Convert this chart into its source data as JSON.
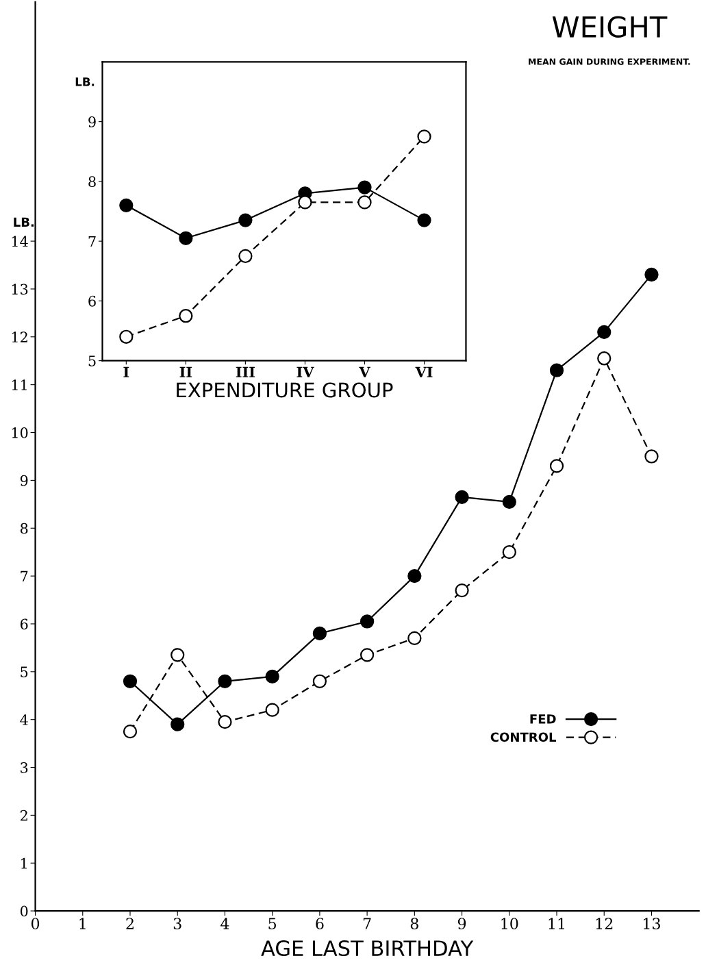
{
  "chart_data": [
    {
      "type": "line",
      "title": "WEIGHT",
      "subtitle": "MEAN GAIN DURING EXPERIMENT.",
      "xlabel": "AGE LAST BIRTHDAY",
      "ylabel": "LB.",
      "x": [
        2,
        3,
        4,
        5,
        6,
        7,
        8,
        9,
        10,
        11,
        12,
        13
      ],
      "xlim": [
        0,
        14
      ],
      "ylim": [
        0,
        19
      ],
      "xticks": [
        0,
        1,
        2,
        3,
        4,
        5,
        6,
        7,
        8,
        9,
        10,
        11,
        12,
        13
      ],
      "yticks": [
        0,
        1,
        2,
        3,
        4,
        5,
        6,
        7,
        8,
        9,
        10,
        11,
        12,
        13,
        14
      ],
      "grid": false,
      "legend": "bottom right",
      "marker": "circle",
      "series": [
        {
          "name": "FED",
          "color": "#000000",
          "line_style": "solid",
          "values": [
            4.8,
            3.9,
            4.8,
            4.9,
            5.8,
            6.05,
            7.0,
            8.65,
            8.55,
            11.3,
            12.1,
            13.3
          ]
        },
        {
          "name": "CONTROL",
          "color": "#000000",
          "line_style": "dashed",
          "values": [
            3.75,
            5.35,
            3.95,
            4.2,
            4.8,
            5.35,
            5.7,
            6.7,
            7.5,
            9.3,
            11.55,
            9.5
          ]
        }
      ]
    },
    {
      "type": "line",
      "xlabel": "EXPENDITURE GROUP",
      "ylabel": "LB.",
      "categories": [
        "I",
        "II",
        "III",
        "IV",
        "V",
        "VI"
      ],
      "ylim": [
        5,
        10
      ],
      "yticks": [
        5,
        6,
        7,
        8,
        9
      ],
      "grid": false,
      "marker": "circle",
      "series": [
        {
          "color": "#000000",
          "line_style": "solid",
          "values": [
            7.6,
            7.05,
            7.35,
            7.8,
            7.9,
            7.35
          ]
        },
        {
          "color": "#000000",
          "line_style": "dashed",
          "values": [
            5.4,
            5.75,
            6.75,
            7.65,
            7.65,
            8.75
          ]
        }
      ]
    }
  ]
}
